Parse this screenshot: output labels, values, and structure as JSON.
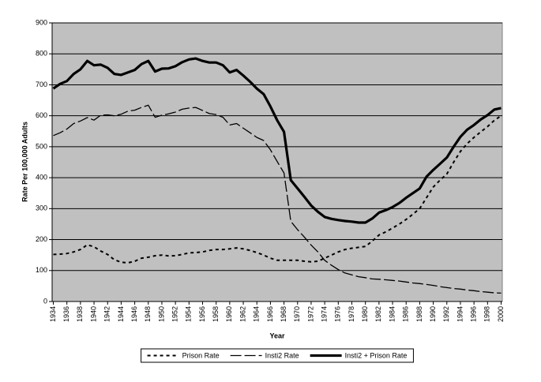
{
  "chart_data": {
    "type": "line",
    "x_label": "Year",
    "y_label": "Rate Per 100,000 Adults",
    "x": [
      1934,
      1935,
      1936,
      1937,
      1938,
      1939,
      1940,
      1941,
      1942,
      1943,
      1944,
      1945,
      1946,
      1947,
      1948,
      1949,
      1950,
      1951,
      1952,
      1953,
      1954,
      1955,
      1956,
      1957,
      1958,
      1959,
      1960,
      1961,
      1962,
      1963,
      1964,
      1965,
      1966,
      1967,
      1968,
      1969,
      1970,
      1971,
      1972,
      1973,
      1974,
      1975,
      1976,
      1977,
      1978,
      1979,
      1980,
      1981,
      1982,
      1983,
      1984,
      1985,
      1986,
      1987,
      1988,
      1989,
      1990,
      1991,
      1992,
      1993,
      1994,
      1995,
      1996,
      1997,
      1998,
      1999,
      2000
    ],
    "xlim": [
      1934,
      2000
    ],
    "xticks": [
      1934,
      1936,
      1938,
      1940,
      1942,
      1944,
      1946,
      1948,
      1950,
      1952,
      1954,
      1956,
      1958,
      1960,
      1962,
      1964,
      1966,
      1968,
      1970,
      1972,
      1974,
      1976,
      1978,
      1980,
      1982,
      1984,
      1986,
      1988,
      1990,
      1992,
      1994,
      1996,
      1998,
      2000
    ],
    "ylim": [
      0,
      900
    ],
    "yticks": [
      0,
      100,
      200,
      300,
      400,
      500,
      600,
      700,
      800,
      900
    ],
    "grid": true,
    "legend": "bottom",
    "series": [
      {
        "name": "Prison Rate",
        "color": "#000000",
        "style": "dotted",
        "values": [
          152,
          153,
          155,
          160,
          168,
          183,
          177,
          163,
          152,
          135,
          127,
          125,
          130,
          140,
          143,
          148,
          150,
          147,
          148,
          152,
          157,
          158,
          160,
          165,
          168,
          168,
          170,
          173,
          170,
          165,
          158,
          150,
          140,
          133,
          133,
          133,
          133,
          130,
          128,
          130,
          140,
          150,
          160,
          168,
          172,
          175,
          178,
          195,
          215,
          225,
          237,
          250,
          265,
          282,
          300,
          335,
          370,
          392,
          412,
          450,
          485,
          510,
          530,
          548,
          565,
          585,
          600
        ]
      },
      {
        "name": "Insti2 Rate",
        "color": "#000000",
        "style": "dashed",
        "values": [
          536,
          545,
          557,
          575,
          583,
          594,
          586,
          602,
          603,
          600,
          605,
          615,
          618,
          627,
          634,
          595,
          602,
          606,
          612,
          621,
          625,
          627,
          617,
          607,
          604,
          595,
          570,
          575,
          560,
          545,
          530,
          520,
          490,
          452,
          415,
          259,
          232,
          208,
          182,
          160,
          133,
          117,
          103,
          92,
          86,
          80,
          77,
          73,
          72,
          70,
          68,
          66,
          63,
          60,
          58,
          55,
          52,
          48,
          45,
          42,
          40,
          37,
          35,
          32,
          30,
          28,
          27
        ]
      },
      {
        "name": "Insti2 + Prison Rate",
        "color": "#000000",
        "style": "solid",
        "values": [
          688,
          703,
          712,
          735,
          750,
          777,
          763,
          765,
          755,
          735,
          732,
          740,
          748,
          767,
          777,
          743,
          752,
          753,
          760,
          773,
          782,
          785,
          777,
          772,
          772,
          763,
          740,
          748,
          730,
          710,
          688,
          670,
          630,
          585,
          548,
          392,
          365,
          338,
          310,
          290,
          273,
          267,
          263,
          260,
          258,
          255,
          255,
          268,
          287,
          295,
          305,
          318,
          335,
          350,
          365,
          403,
          425,
          445,
          465,
          500,
          532,
          555,
          570,
          588,
          602,
          620,
          625
        ]
      }
    ]
  }
}
